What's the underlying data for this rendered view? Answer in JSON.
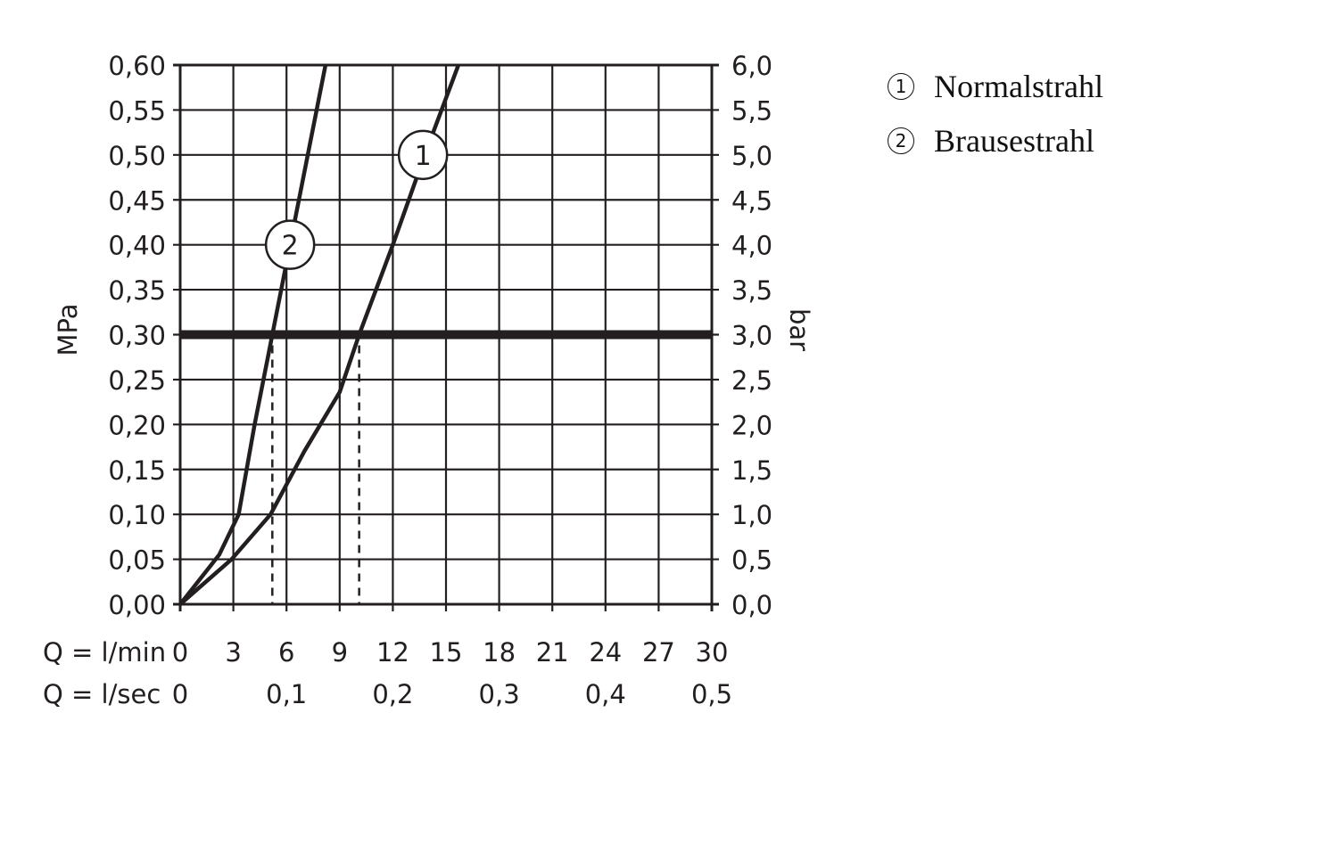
{
  "chart_data": {
    "type": "line",
    "xlabel": "Q = l/min",
    "xlabel_secondary": "Q = l/sec",
    "ylabel": "MPa",
    "ylabel_right": "bar",
    "xlim": [
      0,
      30
    ],
    "ylim": [
      0,
      0.6
    ],
    "grid": true,
    "x_ticks": [
      "0",
      "3",
      "6",
      "9",
      "12",
      "15",
      "18",
      "21",
      "24",
      "27",
      "30"
    ],
    "x_ticks_secondary": [
      {
        "value": 0,
        "label": "0"
      },
      {
        "value": 6,
        "label": "0,1"
      },
      {
        "value": 12,
        "label": "0,2"
      },
      {
        "value": 18,
        "label": "0,3"
      },
      {
        "value": 24,
        "label": "0,4"
      },
      {
        "value": 30,
        "label": "0,5"
      }
    ],
    "y_ticks": [
      "0,00",
      "0,05",
      "0,10",
      "0,15",
      "0,20",
      "0,25",
      "0,30",
      "0,35",
      "0,40",
      "0,45",
      "0,50",
      "0,55",
      "0,60"
    ],
    "y_ticks_right": [
      "0,0",
      "0,5",
      "1,0",
      "1,5",
      "2,0",
      "2,5",
      "3,0",
      "3,5",
      "4,0",
      "4,5",
      "5,0",
      "5,5",
      "6,0"
    ],
    "reference_line": {
      "y": 0.3
    },
    "series": [
      {
        "name": "1",
        "label_at": [
          13.7,
          0.5
        ],
        "drop_at": 10.1,
        "x": [
          0,
          2.9,
          5.1,
          7.0,
          9.0,
          10.1,
          12.0,
          13.8,
          15.7
        ],
        "y": [
          0,
          0.05,
          0.1,
          0.17,
          0.236,
          0.3,
          0.4,
          0.5,
          0.6
        ]
      },
      {
        "name": "2",
        "label_at": [
          6.2,
          0.4
        ],
        "drop_at": 5.2,
        "x": [
          0,
          2.2,
          3.3,
          4.2,
          5.2,
          6.2,
          7.2,
          8.2
        ],
        "y": [
          0,
          0.055,
          0.1,
          0.2,
          0.3,
          0.4,
          0.5,
          0.6
        ]
      }
    ],
    "legend": [
      {
        "num": "1",
        "label": "Normalstrahl"
      },
      {
        "num": "2",
        "label": "Brausestrahl"
      }
    ],
    "legend_placement": "top-right"
  }
}
